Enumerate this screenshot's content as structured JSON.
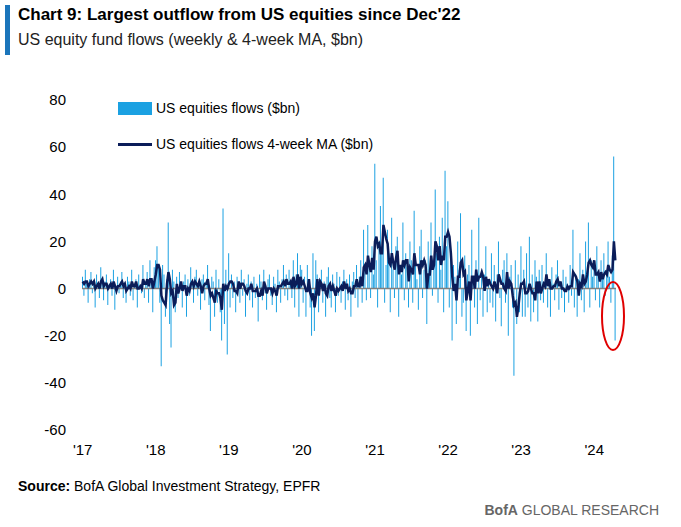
{
  "chart_data": {
    "type": "combo",
    "title": "Chart 9: Largest outflow from US equities since Dec'22",
    "subtitle": "US equity fund flows (weekly & 4-week MA, $bn)",
    "source": "Source: BofA Global Investment Strategy, EPFR",
    "footer": "BofA GLOBAL RESEARCH",
    "legend": "upper left",
    "grid": false,
    "ylim": [
      -60,
      80
    ],
    "yticks": [
      -60,
      -40,
      -20,
      0,
      20,
      40,
      60,
      80
    ],
    "categories": [
      "'17",
      null,
      null,
      null,
      null,
      null,
      null,
      null,
      null,
      null,
      null,
      null,
      null,
      null,
      null,
      null,
      null,
      null,
      null,
      null,
      null,
      null,
      null,
      null,
      null,
      null,
      null,
      null,
      null,
      null,
      null,
      null,
      null,
      null,
      null,
      null,
      null,
      null,
      null,
      null,
      null,
      null,
      null,
      null,
      null,
      null,
      null,
      null,
      null,
      null,
      null,
      null,
      "'18",
      null,
      null,
      null,
      null,
      null,
      null,
      null,
      null,
      null,
      null,
      null,
      null,
      null,
      null,
      null,
      null,
      null,
      null,
      null,
      null,
      null,
      null,
      null,
      null,
      null,
      null,
      null,
      null,
      null,
      null,
      null,
      null,
      null,
      null,
      null,
      null,
      null,
      null,
      null,
      null,
      null,
      null,
      null,
      null,
      null,
      null,
      null,
      null,
      null,
      null,
      null,
      "'19",
      null,
      null,
      null,
      null,
      null,
      null,
      null,
      null,
      null,
      null,
      null,
      null,
      null,
      null,
      null,
      null,
      null,
      null,
      null,
      null,
      null,
      null,
      null,
      null,
      null,
      null,
      null,
      null,
      null,
      null,
      null,
      null,
      null,
      null,
      null,
      null,
      null,
      null,
      null,
      null,
      null,
      null,
      null,
      null,
      null,
      null,
      null,
      null,
      null,
      null,
      null,
      "'20",
      null,
      null,
      null,
      null,
      null,
      null,
      null,
      null,
      null,
      null,
      null,
      null,
      null,
      null,
      null,
      null,
      null,
      null,
      null,
      null,
      null,
      null,
      null,
      null,
      null,
      null,
      null,
      null,
      null,
      null,
      null,
      null,
      null,
      null,
      null,
      null,
      null,
      null,
      null,
      null,
      null,
      null,
      null,
      null,
      null,
      null,
      null,
      null,
      null,
      null,
      null,
      "'21",
      null,
      null,
      null,
      null,
      null,
      null,
      null,
      null,
      null,
      null,
      null,
      null,
      null,
      null,
      null,
      null,
      null,
      null,
      null,
      null,
      null,
      null,
      null,
      null,
      null,
      null,
      null,
      null,
      null,
      null,
      null,
      null,
      null,
      null,
      null,
      null,
      null,
      null,
      null,
      null,
      null,
      null,
      null,
      null,
      null,
      null,
      null,
      null,
      null,
      null,
      null,
      "'22",
      null,
      null,
      null,
      null,
      null,
      null,
      null,
      null,
      null,
      null,
      null,
      null,
      null,
      null,
      null,
      null,
      null,
      null,
      null,
      null,
      null,
      null,
      null,
      null,
      null,
      null,
      null,
      null,
      null,
      null,
      null,
      null,
      null,
      null,
      null,
      null,
      null,
      null,
      null,
      null,
      null,
      null,
      null,
      null,
      null,
      null,
      null,
      null,
      null,
      null,
      null,
      "'23",
      null,
      null,
      null,
      null,
      null,
      null,
      null,
      null,
      null,
      null,
      null,
      null,
      null,
      null,
      null,
      null,
      null,
      null,
      null,
      null,
      null,
      null,
      null,
      null,
      null,
      null,
      null,
      null,
      null,
      null,
      null,
      null,
      null,
      null,
      null,
      null,
      null,
      null,
      null,
      null,
      null,
      null,
      null,
      null,
      null,
      null,
      null,
      null,
      null,
      null,
      null,
      "'24",
      null,
      null,
      null,
      null,
      null,
      null,
      null,
      null,
      null,
      null,
      null,
      null,
      null,
      null,
      null
    ],
    "series": [
      {
        "name": "US equities flows ($bn)",
        "type": "bar",
        "color": "#1ba1e2",
        "values": [
          5,
          -3,
          8,
          2,
          -6,
          4,
          7,
          -2,
          3,
          -8,
          6,
          1,
          -4,
          9,
          2,
          -5,
          3,
          6,
          -7,
          2,
          4,
          -3,
          8,
          -9,
          1,
          5,
          -2,
          3,
          7,
          -4,
          2,
          -6,
          5,
          3,
          -3,
          8,
          -5,
          2,
          4,
          -8,
          6,
          1,
          -2,
          10,
          -4,
          3,
          7,
          -6,
          12,
          2,
          -10,
          9,
          12,
          18,
          9,
          -6,
          -33,
          10,
          6,
          -12,
          4,
          28,
          -15,
          -25,
          8,
          3,
          -10,
          5,
          -4,
          7,
          2,
          -8,
          3,
          6,
          -12,
          4,
          -3,
          9,
          2,
          -6,
          5,
          8,
          -3,
          2,
          -9,
          4,
          6,
          -5,
          3,
          10,
          -7,
          -18,
          5,
          3,
          -12,
          8,
          -6,
          4,
          -10,
          -22,
          34,
          -15,
          8,
          -28,
          15,
          -8,
          6,
          -4,
          3,
          -10,
          5,
          2,
          -6,
          8,
          -3,
          4,
          -12,
          2,
          6,
          -5,
          3,
          -8,
          5,
          -4,
          2,
          -14,
          6,
          3,
          -5,
          8,
          -2,
          -9,
          4,
          6,
          -3,
          -7,
          5,
          2,
          -10,
          8,
          3,
          -6,
          4,
          10,
          -3,
          6,
          -5,
          8,
          2,
          -4,
          12,
          -8,
          6,
          15,
          -12,
          10,
          8,
          -6,
          5,
          -12,
          10,
          4,
          -8,
          -20,
          15,
          -18,
          12,
          6,
          -10,
          4,
          8,
          -6,
          3,
          -12,
          5,
          9,
          -4,
          -8,
          6,
          2,
          -10,
          7,
          -3,
          5,
          -6,
          3,
          8,
          -9,
          4,
          -5,
          6,
          -12,
          3,
          7,
          -4,
          10,
          -8,
          5,
          12,
          -6,
          25,
          8,
          -5,
          27,
          10,
          -4,
          18,
          6,
          53,
          12,
          -8,
          20,
          35,
          18,
          47,
          -6,
          10,
          25,
          15,
          -10,
          30,
          8,
          -4,
          18,
          22,
          -12,
          10,
          6,
          28,
          -5,
          15,
          9,
          -8,
          20,
          12,
          -6,
          33,
          10,
          4,
          -9,
          18,
          25,
          -4,
          8,
          12,
          -15,
          20,
          6,
          28,
          -3,
          10,
          42,
          15,
          -6,
          22,
          8,
          30,
          -10,
          50,
          18,
          37,
          -8,
          15,
          -22,
          10,
          5,
          -15,
          20,
          8,
          32,
          -12,
          -6,
          14,
          -18,
          6,
          10,
          -20,
          25,
          4,
          -8,
          12,
          -15,
          30,
          -5,
          8,
          -12,
          6,
          18,
          -10,
          4,
          -6,
          15,
          -8,
          10,
          -14,
          6,
          20,
          -4,
          -16,
          8,
          12,
          -6,
          15,
          -20,
          5,
          10,
          -8,
          -37,
          12,
          -15,
          6,
          -10,
          18,
          -12,
          8,
          -12,
          15,
          -8,
          22,
          -14,
          6,
          -10,
          12,
          5,
          -14,
          8,
          -5,
          10,
          -6,
          3,
          15,
          -8,
          4,
          -12,
          9,
          2,
          -5,
          6,
          12,
          -9,
          3,
          -4,
          8,
          -10,
          5,
          2,
          -6,
          10,
          -3,
          25,
          -8,
          6,
          -12,
          4,
          15,
          -5,
          8,
          -10,
          20,
          6,
          28,
          -8,
          12,
          5,
          10,
          -5,
          18,
          6,
          -8,
          12,
          4,
          15,
          -3,
          8,
          20,
          5,
          -6,
          14,
          56,
          -22
        ]
      },
      {
        "name": "US equities flows 4-week MA ($bn)",
        "type": "line",
        "color": "#0b1d59",
        "values": [
          3,
          2,
          3,
          3,
          1,
          2,
          3,
          2,
          3,
          0,
          1,
          2,
          0,
          3,
          4,
          1,
          2,
          2,
          0,
          1,
          2,
          0,
          3,
          1,
          -1,
          1,
          1,
          2,
          3,
          1,
          2,
          -1,
          0,
          1,
          0,
          3,
          1,
          1,
          3,
          0,
          0,
          1,
          0,
          4,
          2,
          2,
          4,
          1,
          4,
          4,
          0,
          3,
          6,
          10,
          10,
          8,
          -3,
          -5,
          -6,
          -7,
          2,
          7,
          4,
          -2,
          -1,
          -7,
          -6,
          2,
          -2,
          0,
          3,
          -1,
          1,
          1,
          -3,
          0,
          -1,
          2,
          3,
          1,
          3,
          2,
          1,
          3,
          1,
          -2,
          1,
          2,
          2,
          4,
          0,
          -3,
          -2,
          -4,
          -6,
          -1,
          -2,
          -2,
          -4,
          -9,
          2,
          -1,
          1,
          0,
          2,
          3,
          3,
          2,
          -1,
          -1,
          -2,
          3,
          0,
          2,
          2,
          1,
          -1,
          -2,
          0,
          0,
          2,
          -1,
          -1,
          -1,
          0,
          -3,
          -3,
          -1,
          -3,
          3,
          1,
          -2,
          0,
          0,
          0,
          -2,
          0,
          -1,
          -3,
          1,
          1,
          1,
          2,
          3,
          1,
          4,
          2,
          2,
          3,
          0,
          5,
          1,
          2,
          6,
          0,
          5,
          2,
          3,
          1,
          -1,
          -1,
          4,
          -2,
          -4,
          -2,
          -8,
          -3,
          4,
          -3,
          3,
          2,
          -1,
          2,
          -2,
          -3,
          1,
          2,
          -1,
          1,
          -1,
          -3,
          0,
          -1,
          0,
          1,
          -1,
          3,
          0,
          2,
          -1,
          0,
          -2,
          -2,
          1,
          1,
          4,
          1,
          1,
          5,
          1,
          9,
          10,
          6,
          14,
          10,
          7,
          13,
          8,
          20,
          22,
          18,
          19,
          15,
          15,
          27,
          24,
          21,
          19,
          11,
          10,
          15,
          11,
          8,
          13,
          16,
          6,
          10,
          7,
          12,
          10,
          12,
          12,
          3,
          9,
          8,
          6,
          15,
          10,
          10,
          10,
          6,
          12,
          10,
          12,
          10,
          0,
          6,
          6,
          14,
          8,
          10,
          20,
          18,
          12,
          18,
          10,
          14,
          12,
          22,
          22,
          24,
          22,
          15,
          5,
          -1,
          2,
          -5,
          5,
          5,
          11,
          12,
          6,
          7,
          -5,
          -1,
          3,
          -5,
          5,
          5,
          0,
          8,
          3,
          5,
          5,
          7,
          5,
          -1,
          5,
          1,
          4,
          2,
          1,
          0,
          3,
          1,
          -2,
          6,
          4,
          2,
          2,
          0,
          -1,
          7,
          0,
          3,
          2,
          -3,
          -7,
          -6,
          -12,
          -8,
          -2,
          2,
          2,
          3,
          -2,
          -2,
          -1,
          2,
          0,
          -2,
          -2,
          -5,
          3,
          -2,
          3,
          -2,
          0,
          2,
          1,
          6,
          1,
          4,
          0,
          0,
          1,
          1,
          3,
          4,
          1,
          3,
          0,
          0,
          -1,
          -1,
          1,
          0,
          1,
          1,
          7,
          6,
          5,
          3,
          -3,
          2,
          1,
          6,
          2,
          3,
          6,
          11,
          12,
          10,
          9,
          12,
          6,
          6,
          7,
          3,
          7,
          4,
          6,
          7,
          6,
          10,
          8,
          7,
          8,
          20,
          12
        ]
      }
    ]
  }
}
